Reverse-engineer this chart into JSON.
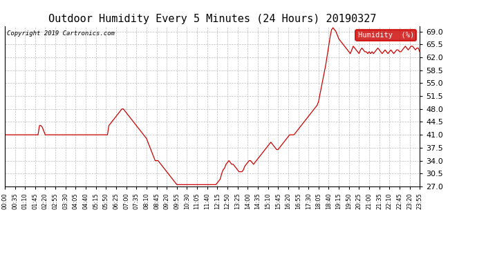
{
  "title": "Outdoor Humidity Every 5 Minutes (24 Hours) 20190327",
  "copyright_text": "Copyright 2019 Cartronics.com",
  "legend_label": "Humidity  (%)",
  "line_color": "#cc0000",
  "legend_bg": "#cc0000",
  "legend_text_color": "#ffffff",
  "bg_color": "#ffffff",
  "grid_color": "#bbbbbb",
  "title_fontsize": 11,
  "ylabel_fontsize": 8,
  "xlabel_fontsize": 6,
  "ylim": [
    27.0,
    70.5
  ],
  "yticks": [
    27.0,
    30.5,
    34.0,
    37.5,
    41.0,
    44.5,
    48.0,
    51.5,
    55.0,
    58.5,
    62.0,
    65.5,
    69.0
  ],
  "humidity_data": [
    41.0,
    41.0,
    41.0,
    41.0,
    41.0,
    41.0,
    41.0,
    41.0,
    41.0,
    41.0,
    41.0,
    41.0,
    41.0,
    41.0,
    41.0,
    41.0,
    41.0,
    41.0,
    41.0,
    41.0,
    41.0,
    41.0,
    41.0,
    41.0,
    43.5,
    43.5,
    43.0,
    42.0,
    41.0,
    41.0,
    41.0,
    41.0,
    41.0,
    41.0,
    41.0,
    41.0,
    41.0,
    41.0,
    41.0,
    41.0,
    41.0,
    41.0,
    41.0,
    41.0,
    41.0,
    41.0,
    41.0,
    41.0,
    41.0,
    41.0,
    41.0,
    41.0,
    41.0,
    41.0,
    41.0,
    41.0,
    41.0,
    41.0,
    41.0,
    41.0,
    41.0,
    41.0,
    41.0,
    41.0,
    41.0,
    41.0,
    41.0,
    41.0,
    41.0,
    41.0,
    41.0,
    41.0,
    43.5,
    44.0,
    44.5,
    45.0,
    45.5,
    46.0,
    46.5,
    47.0,
    47.5,
    48.0,
    48.0,
    47.5,
    47.0,
    46.5,
    46.0,
    45.5,
    45.0,
    44.5,
    44.0,
    43.5,
    43.0,
    42.5,
    42.0,
    41.5,
    41.0,
    40.5,
    40.0,
    39.0,
    38.0,
    37.0,
    36.0,
    35.0,
    34.0,
    34.0,
    34.0,
    33.5,
    33.0,
    32.5,
    32.0,
    31.5,
    31.0,
    30.5,
    30.0,
    29.5,
    29.0,
    28.5,
    28.0,
    27.5,
    27.5,
    27.5,
    27.5,
    27.5,
    27.5,
    27.5,
    27.5,
    27.5,
    27.5,
    27.5,
    27.5,
    27.5,
    27.5,
    27.5,
    27.5,
    27.5,
    27.5,
    27.5,
    27.5,
    27.5,
    27.5,
    27.5,
    27.5,
    27.5,
    27.5,
    27.5,
    27.5,
    28.0,
    28.5,
    29.0,
    30.5,
    31.5,
    32.0,
    33.0,
    33.5,
    34.0,
    33.5,
    33.0,
    33.0,
    32.5,
    32.0,
    31.5,
    31.0,
    31.0,
    31.0,
    31.5,
    32.5,
    33.0,
    33.5,
    34.0,
    34.0,
    33.5,
    33.0,
    33.5,
    34.0,
    34.5,
    35.0,
    35.5,
    36.0,
    36.5,
    37.0,
    37.5,
    38.0,
    38.5,
    39.0,
    38.5,
    38.0,
    37.5,
    37.0,
    37.0,
    37.5,
    38.0,
    38.5,
    39.0,
    39.5,
    40.0,
    40.5,
    41.0,
    41.0,
    41.0,
    41.0,
    41.5,
    42.0,
    42.5,
    43.0,
    43.5,
    44.0,
    44.5,
    45.0,
    45.5,
    46.0,
    46.5,
    47.0,
    47.5,
    48.0,
    48.5,
    49.0,
    50.0,
    52.0,
    54.0,
    56.0,
    58.0,
    60.0,
    62.5,
    65.0,
    67.5,
    69.5,
    70.0,
    69.5,
    69.0,
    68.0,
    67.0,
    66.5,
    66.0,
    65.5,
    65.0,
    64.5,
    64.0,
    63.5,
    63.0,
    64.0,
    65.0,
    64.5,
    64.0,
    63.5,
    63.0,
    64.0,
    64.5,
    64.0,
    63.5,
    63.5,
    63.0,
    63.5,
    63.0,
    63.5,
    63.0,
    63.5,
    64.0,
    64.5,
    64.0,
    63.5,
    63.0,
    63.5,
    64.0,
    63.5,
    63.0,
    63.5,
    64.0,
    63.5,
    63.0,
    63.5,
    64.0,
    64.0,
    63.5,
    63.5,
    64.0,
    64.5,
    65.0,
    64.5,
    64.0,
    64.5,
    65.0,
    65.0,
    64.5,
    64.0,
    64.5,
    64.5,
    63.5
  ],
  "x_tick_labels": [
    "00:00",
    "00:35",
    "01:10",
    "01:45",
    "02:20",
    "02:55",
    "03:30",
    "04:05",
    "04:40",
    "05:15",
    "05:50",
    "06:25",
    "07:00",
    "07:35",
    "08:10",
    "08:45",
    "09:20",
    "09:55",
    "10:30",
    "11:05",
    "11:40",
    "12:15",
    "12:50",
    "13:25",
    "14:00",
    "14:35",
    "15:10",
    "15:45",
    "16:20",
    "16:55",
    "17:30",
    "18:05",
    "18:40",
    "19:15",
    "19:50",
    "20:25",
    "21:00",
    "21:35",
    "22:10",
    "22:45",
    "23:20",
    "23:55"
  ],
  "tick_interval": 7
}
